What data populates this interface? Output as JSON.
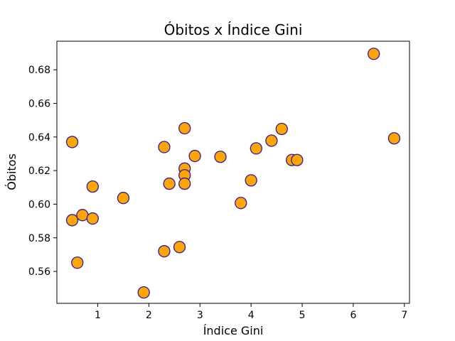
{
  "chart_data": {
    "type": "scatter",
    "title": "Óbitos x Índice Gini",
    "xlabel": "Índice Gini",
    "ylabel": "Óbitos",
    "xlim": [
      0.2,
      7.1
    ],
    "ylim": [
      0.541,
      0.697
    ],
    "xticks": [
      1,
      2,
      3,
      4,
      5,
      6,
      7
    ],
    "yticks": [
      0.56,
      0.58,
      0.6,
      0.62,
      0.64,
      0.66,
      0.68
    ],
    "ytick_labels": [
      "0.56",
      "0.58",
      "0.60",
      "0.62",
      "0.64",
      "0.66",
      "0.68"
    ],
    "grid": false,
    "marker_fill": "#ffa500",
    "marker_edge": "#2f1aa8",
    "points": [
      {
        "x": 0.5,
        "y": 0.637
      },
      {
        "x": 0.5,
        "y": 0.5905
      },
      {
        "x": 0.6,
        "y": 0.5652
      },
      {
        "x": 0.7,
        "y": 0.5935
      },
      {
        "x": 0.9,
        "y": 0.6105
      },
      {
        "x": 0.9,
        "y": 0.5915
      },
      {
        "x": 1.5,
        "y": 0.6037
      },
      {
        "x": 1.9,
        "y": 0.5475
      },
      {
        "x": 2.3,
        "y": 0.634
      },
      {
        "x": 2.3,
        "y": 0.572
      },
      {
        "x": 2.4,
        "y": 0.6122
      },
      {
        "x": 2.6,
        "y": 0.5745
      },
      {
        "x": 2.7,
        "y": 0.6452
      },
      {
        "x": 2.7,
        "y": 0.6212
      },
      {
        "x": 2.7,
        "y": 0.6172
      },
      {
        "x": 2.7,
        "y": 0.6122
      },
      {
        "x": 2.9,
        "y": 0.6287
      },
      {
        "x": 3.4,
        "y": 0.6282
      },
      {
        "x": 3.8,
        "y": 0.6007
      },
      {
        "x": 4.0,
        "y": 0.6142
      },
      {
        "x": 4.1,
        "y": 0.6332
      },
      {
        "x": 4.4,
        "y": 0.6378
      },
      {
        "x": 4.6,
        "y": 0.6448
      },
      {
        "x": 4.8,
        "y": 0.6263
      },
      {
        "x": 4.9,
        "y": 0.6263
      },
      {
        "x": 6.4,
        "y": 0.6895
      },
      {
        "x": 6.8,
        "y": 0.6392
      }
    ]
  }
}
